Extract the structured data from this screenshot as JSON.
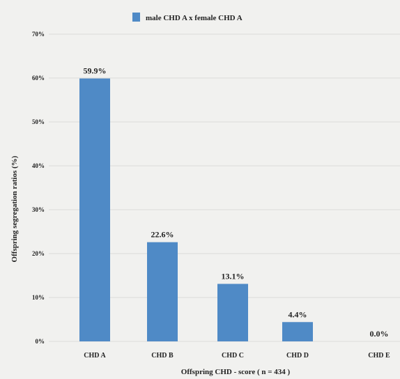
{
  "chart_data": {
    "type": "bar",
    "categories": [
      "CHD A",
      "CHD B",
      "CHD C",
      "CHD D",
      "CHD E"
    ],
    "series": [
      {
        "name": "male CHD A x female CHD A",
        "values": [
          59.9,
          22.6,
          13.1,
          4.4,
          0.0
        ],
        "labels": [
          "59.9%",
          "22.6%",
          "13.1%",
          "4.4%",
          "0.0%"
        ],
        "color": "#4f8ac6"
      }
    ],
    "xlabel": "Offspring CHD - score ( n = 434 )",
    "ylabel": "Offspring segregation ratios (%)",
    "ylim": [
      0,
      70
    ],
    "yticks": [
      0,
      10,
      20,
      30,
      40,
      50,
      60,
      70
    ],
    "ytick_labels": [
      "0%",
      "10%",
      "20%",
      "30%",
      "40%",
      "50%",
      "60%",
      "70%"
    ],
    "grid": true,
    "legend": "top-center"
  }
}
